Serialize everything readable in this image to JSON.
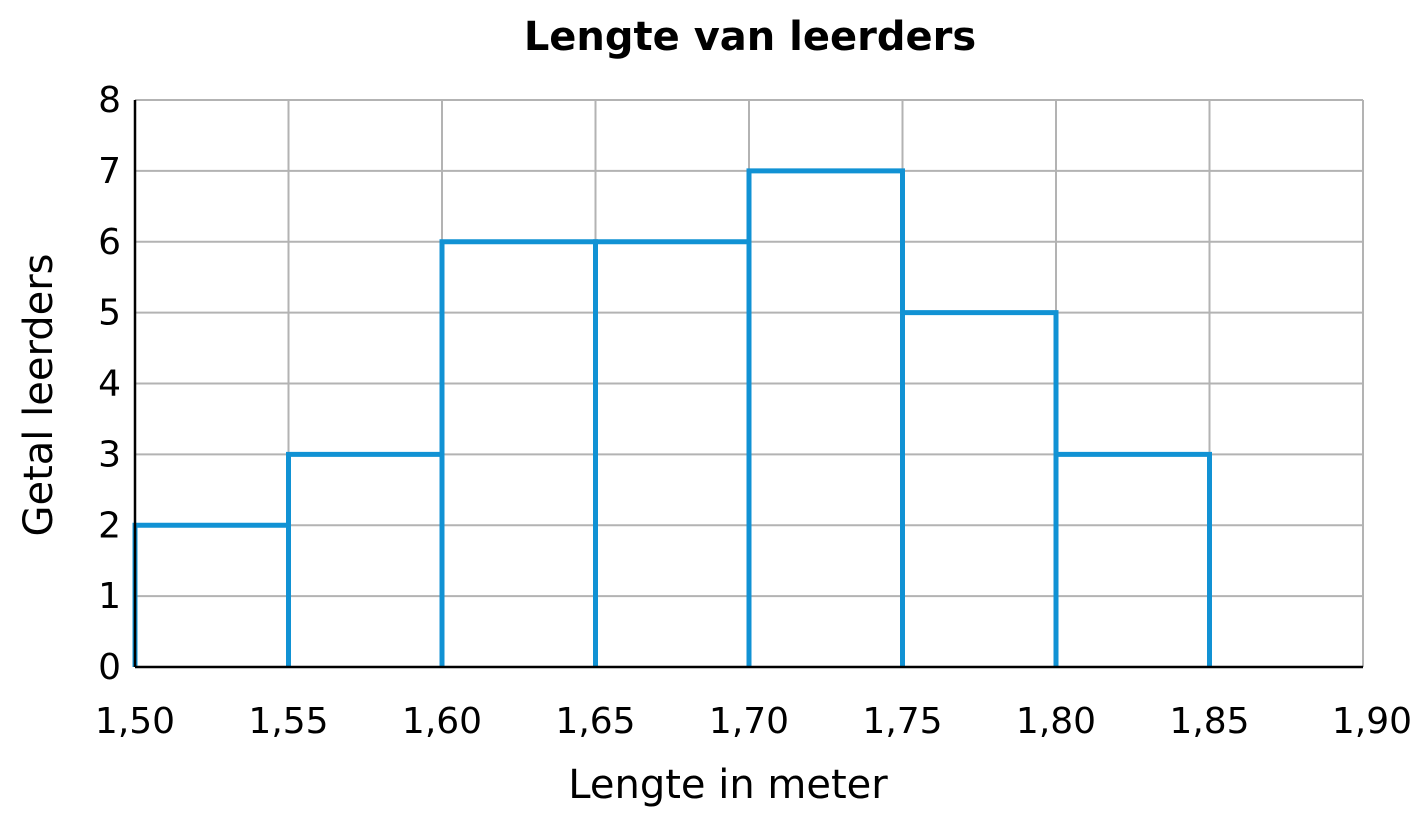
{
  "chart_data": {
    "type": "bar",
    "title": "Lengte van leerders",
    "xlabel": "Lengte in meter",
    "ylabel": "Getal leerders",
    "bins": [
      {
        "from": 1.5,
        "to": 1.55,
        "value": 2
      },
      {
        "from": 1.55,
        "to": 1.6,
        "value": 3
      },
      {
        "from": 1.6,
        "to": 1.65,
        "value": 6
      },
      {
        "from": 1.65,
        "to": 1.7,
        "value": 6
      },
      {
        "from": 1.7,
        "to": 1.75,
        "value": 7
      },
      {
        "from": 1.75,
        "to": 1.8,
        "value": 5
      },
      {
        "from": 1.8,
        "to": 1.85,
        "value": 3
      }
    ],
    "xlim": [
      1.5,
      1.9
    ],
    "ylim": [
      0,
      8
    ],
    "x_ticks": [
      "1,50",
      "1,55",
      "1,60",
      "1,65",
      "1,70",
      "1,75",
      "1,80",
      "1,85",
      "1,90"
    ],
    "y_ticks": [
      "0",
      "1",
      "2",
      "3",
      "4",
      "5",
      "6",
      "7",
      "8"
    ],
    "grid": true,
    "colors": {
      "bar_outline": "#1192d4",
      "grid": "#b3b3b3"
    }
  }
}
